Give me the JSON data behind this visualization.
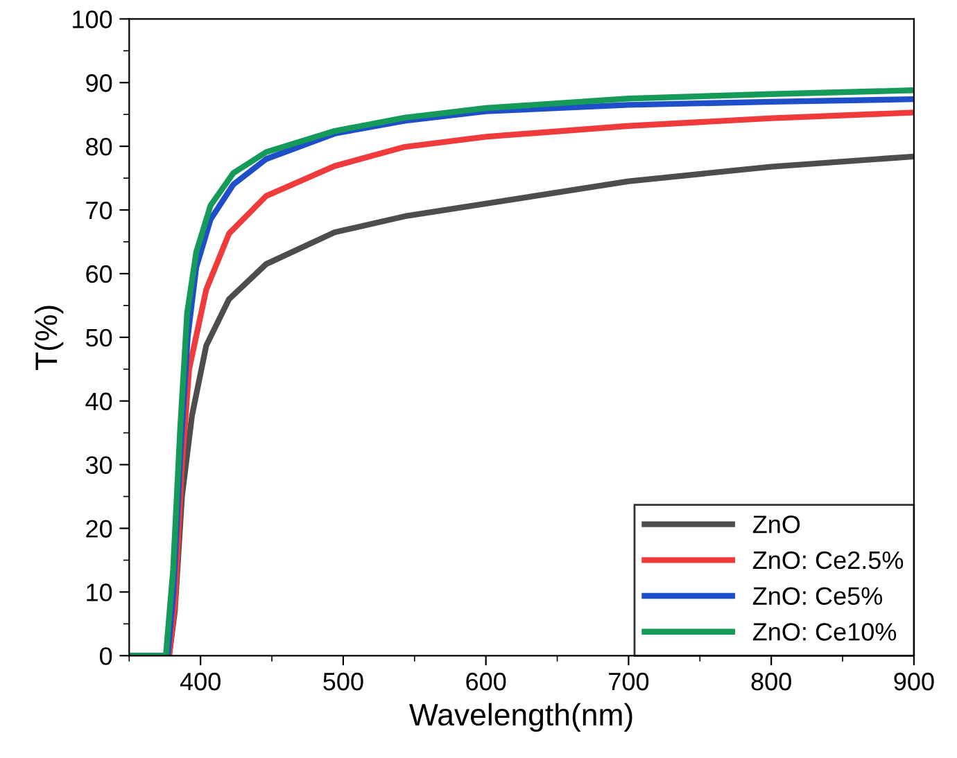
{
  "chart_data": {
    "type": "line",
    "xlabel": "Wavelength(nm)",
    "ylabel": "T(%)",
    "xlim": [
      350,
      900
    ],
    "ylim": [
      0,
      100
    ],
    "xticks": [
      400,
      500,
      600,
      700,
      800,
      900
    ],
    "yticks": [
      0,
      10,
      20,
      30,
      40,
      50,
      60,
      70,
      80,
      90,
      100
    ],
    "grid": false,
    "legend": "bottom right",
    "marker": "none",
    "line_style": "solid",
    "series": [
      {
        "name": "ZnO",
        "color": "#4d4d4d",
        "x": [
          350,
          378,
          382,
          387,
          394,
          404,
          420,
          446,
          494,
          543,
          600,
          700,
          800,
          900
        ],
        "values": [
          0,
          0,
          7,
          25,
          37.7,
          48.7,
          56,
          61.5,
          66.5,
          69,
          71,
          74.5,
          76.8,
          78.4
        ]
      },
      {
        "name": "ZnO: Ce2.5%",
        "color": "#ef3b3b",
        "x": [
          350,
          378,
          382,
          387,
          392,
          404,
          420,
          446,
          494,
          543,
          600,
          700,
          800,
          900
        ],
        "values": [
          0,
          0,
          8,
          30,
          45,
          57.5,
          66.3,
          72.2,
          76.9,
          79.9,
          81.5,
          83.2,
          84.4,
          85.3
        ]
      },
      {
        "name": "ZnO: Ce5%",
        "color": "#1f4fc8",
        "x": [
          350,
          377,
          381,
          386,
          391,
          397,
          407,
          423,
          446,
          494,
          543,
          600,
          700,
          800,
          900
        ],
        "values": [
          0,
          0,
          10,
          32,
          50,
          61,
          68.5,
          74,
          78,
          82,
          84,
          85.5,
          86.5,
          87,
          87.4
        ]
      },
      {
        "name": "ZnO: Ce10%",
        "color": "#159a5a",
        "x": [
          350,
          375.7,
          380.8,
          385.7,
          390.6,
          397,
          407,
          423,
          446,
          494,
          543,
          600,
          700,
          800,
          900
        ],
        "values": [
          0,
          0,
          13.6,
          35.5,
          53.8,
          63.4,
          70.7,
          75.8,
          79.1,
          82.4,
          84.5,
          86,
          87.5,
          88.2,
          88.8
        ]
      }
    ]
  }
}
